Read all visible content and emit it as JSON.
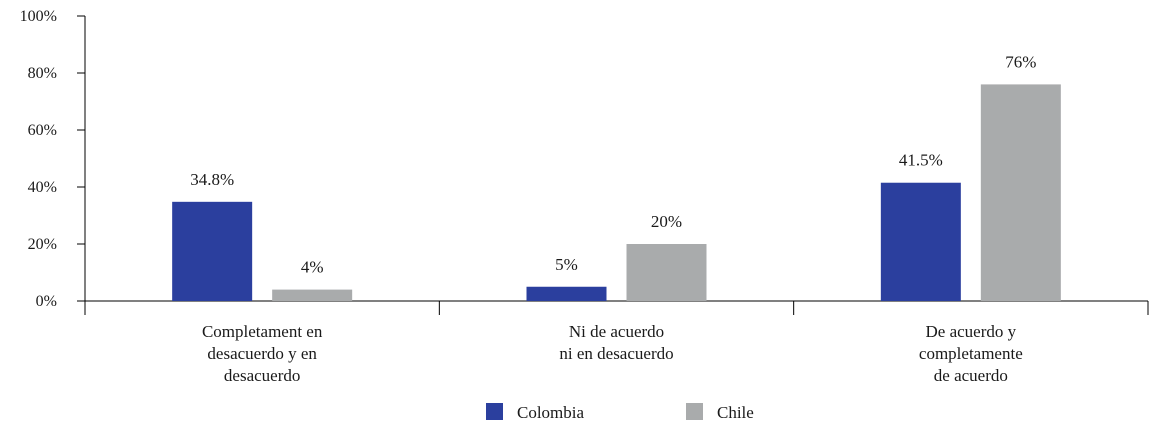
{
  "chart_data": {
    "type": "bar",
    "categories": [
      [
        "Completament en",
        "desacuerdo y en",
        "desacuerdo"
      ],
      [
        "Ni de acuerdo",
        "ni en desacuerdo"
      ],
      [
        "De acuerdo y",
        "completamente",
        "de acuerdo"
      ]
    ],
    "series": [
      {
        "name": "Colombia",
        "color": "#2b3f9e",
        "values": [
          34.8,
          5,
          41.5
        ],
        "labels": [
          "34.8%",
          "5%",
          "41.5%"
        ]
      },
      {
        "name": "Chile",
        "color": "#a9abac",
        "values": [
          4,
          20,
          76
        ],
        "labels": [
          "4%",
          "20%",
          "76%"
        ]
      }
    ],
    "ylim": [
      0,
      100
    ],
    "yticks": [
      0,
      20,
      40,
      60,
      80,
      100
    ],
    "ytick_labels": [
      "0%",
      "20%",
      "40%",
      "60%",
      "80%",
      "100%"
    ],
    "title": "",
    "xlabel": "",
    "ylabel": "",
    "legend_position": "bottom-center",
    "grid": false
  }
}
